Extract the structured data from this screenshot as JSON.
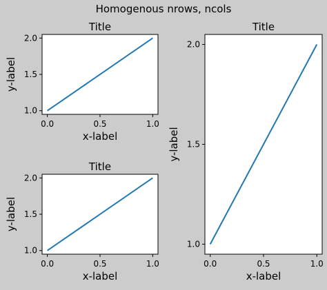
{
  "figure": {
    "suptitle": "Homogenous nrows, ncols",
    "background": "#cccccc",
    "line_color": "#1f77b4"
  },
  "chart_data": [
    {
      "type": "line",
      "title": "Title",
      "xlabel": "x-label",
      "ylabel": "y-label",
      "xlim": [
        -0.05,
        1.05
      ],
      "ylim": [
        0.95,
        2.05
      ],
      "xticks": [
        0.0,
        0.5,
        1.0
      ],
      "xtick_labels": [
        "0.0",
        "0.5",
        "1.0"
      ],
      "yticks": [
        1.0,
        1.5,
        2.0
      ],
      "ytick_labels": [
        "1.0",
        "1.5",
        "2.0"
      ],
      "x": [
        0,
        1
      ],
      "series": [
        {
          "values": [
            1,
            2
          ]
        }
      ],
      "grid": false
    },
    {
      "type": "line",
      "title": "Title",
      "xlabel": "x-label",
      "ylabel": "y-label",
      "xlim": [
        -0.05,
        1.05
      ],
      "ylim": [
        0.95,
        2.05
      ],
      "xticks": [
        0.0,
        0.5,
        1.0
      ],
      "xtick_labels": [
        "0.0",
        "0.5",
        "1.0"
      ],
      "yticks": [
        1.0,
        1.5,
        2.0
      ],
      "ytick_labels": [
        "1.0",
        "1.5",
        "2.0"
      ],
      "x": [
        0,
        1
      ],
      "series": [
        {
          "values": [
            1,
            2
          ]
        }
      ],
      "grid": false
    },
    {
      "type": "line",
      "title": "Title",
      "xlabel": "x-label",
      "ylabel": "y-label",
      "xlim": [
        -0.05,
        1.05
      ],
      "ylim": [
        0.95,
        2.05
      ],
      "xticks": [
        0.0,
        0.5,
        1.0
      ],
      "xtick_labels": [
        "0.0",
        "0.5",
        "1.0"
      ],
      "yticks": [
        1.0,
        1.5,
        2.0
      ],
      "ytick_labels": [
        "1.0",
        "1.5",
        "2.0"
      ],
      "x": [
        0,
        1
      ],
      "series": [
        {
          "values": [
            1,
            2
          ]
        }
      ],
      "grid": false
    }
  ]
}
